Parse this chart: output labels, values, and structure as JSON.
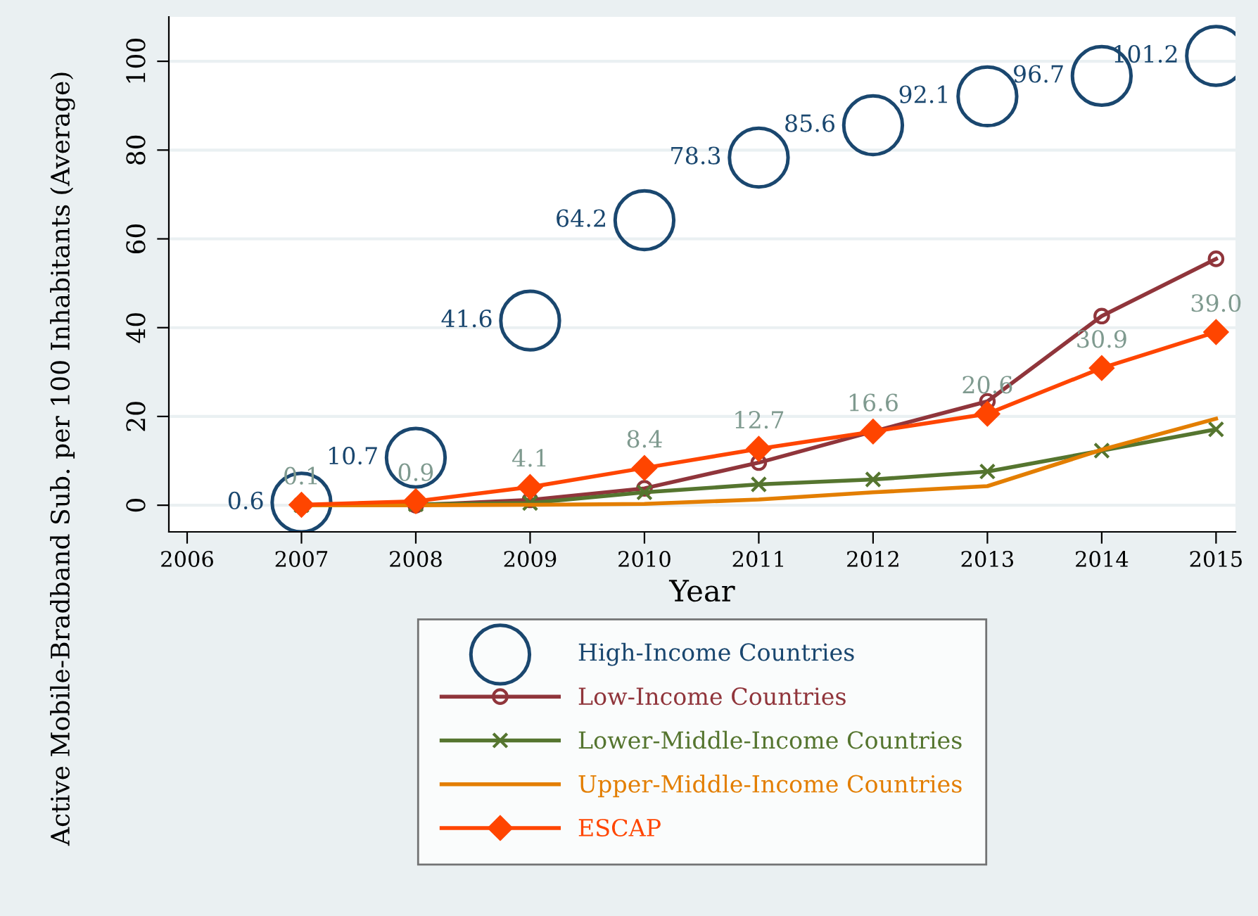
{
  "chart_data": {
    "type": "line",
    "xlabel": "Year",
    "ylabel": "Active Mobile-Bradband Sub. per 100 Inhabitants (Average)",
    "x": [
      2007,
      2008,
      2009,
      2010,
      2011,
      2012,
      2013,
      2014,
      2015
    ],
    "xlim": [
      2005.84,
      2015.17
    ],
    "xticks": [
      2006,
      2007,
      2008,
      2009,
      2010,
      2011,
      2012,
      2013,
      2014,
      2015
    ],
    "ylim": [
      -6,
      110
    ],
    "yticks": [
      0,
      20,
      40,
      60,
      80,
      100
    ],
    "grid": "y",
    "legend": "bottom",
    "series": [
      {
        "name": "High-Income Countries",
        "type": "scatter",
        "marker": "circle",
        "color": "#1a476f",
        "values": [
          0.6,
          10.7,
          41.6,
          64.2,
          78.3,
          85.6,
          92.1,
          96.7,
          101.2
        ],
        "value_labels": [
          "0.6",
          "10.7",
          "41.6",
          "64.2",
          "78.3",
          "85.6",
          "92.1",
          "96.7",
          "101.2"
        ]
      },
      {
        "name": "Low-Income Countries",
        "marker": "circle",
        "color": "#90353b",
        "values": [
          0,
          0,
          1.2,
          3.8,
          9.6,
          16.6,
          23.4,
          42.6,
          55.5
        ]
      },
      {
        "name": "Lower-Middle-Income Countries",
        "marker": "cross",
        "color": "#55752f",
        "values": [
          0,
          0.2,
          0.5,
          2.9,
          4.7,
          5.8,
          7.6,
          12.3,
          17.1
        ]
      },
      {
        "name": "Upper-Middle-Income Countries",
        "marker": "none",
        "color": "#e37e00",
        "values": [
          0,
          0,
          0.1,
          0.3,
          1.3,
          2.9,
          4.3,
          12.5,
          19.5
        ]
      },
      {
        "name": "ESCAP",
        "marker": "diamond",
        "color": "#ff4500",
        "values": [
          0.1,
          0.9,
          4.1,
          8.4,
          12.7,
          16.6,
          20.6,
          30.9,
          39.0
        ],
        "value_labels": [
          "0.1",
          "0.9",
          "4.1",
          "8.4",
          "12.7",
          "16.6",
          "20.6",
          "30.9",
          "39.0"
        ]
      }
    ]
  }
}
